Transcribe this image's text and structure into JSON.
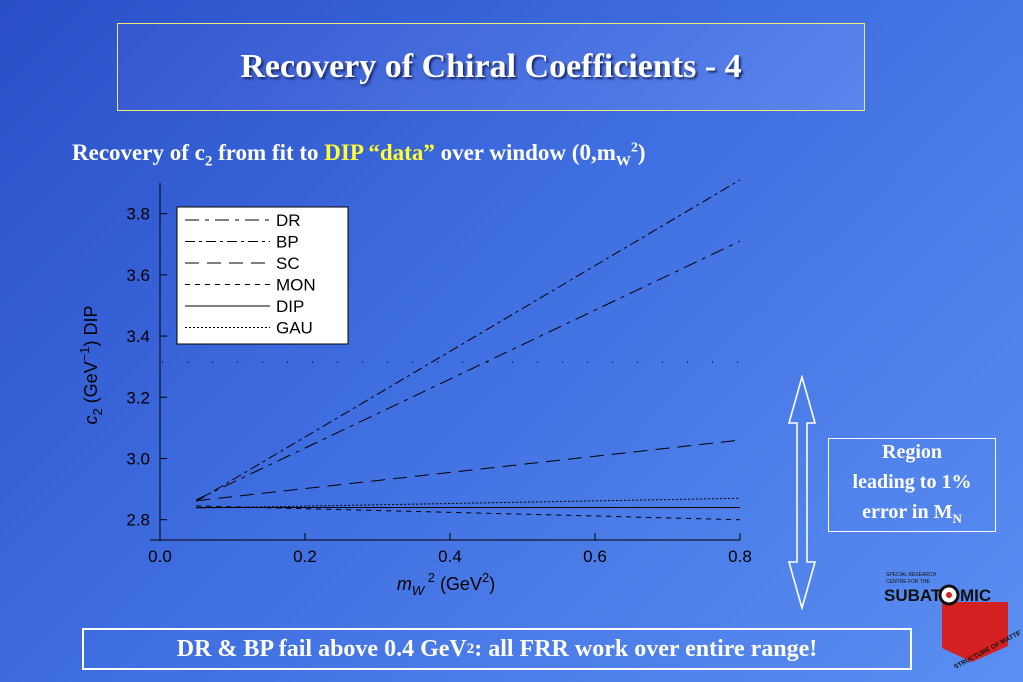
{
  "slide": {
    "title": "Recovery of Chiral Coefficients - 4",
    "subtitle": {
      "pre": "Recovery of c",
      "sub": "2",
      "mid": " from fit to ",
      "highlight": "DIP “data”",
      "post": " over window (0,m",
      "post_sub": "W",
      "post_sup": "2",
      "end": ")"
    },
    "region_note": {
      "line1": "Region",
      "line2": "leading to 1%",
      "line3": "error in M",
      "line3_sub": "N"
    },
    "footer": {
      "pre": "DR & BP fail above 0.4 GeV",
      "sup": "2",
      "post": " : all FRR work over entire range!"
    },
    "logo": {
      "top_text": [
        "SPECIAL RESEARCH",
        "CENTRE FOR THE"
      ],
      "word_left": "SUBAT",
      "word_right": "MIC",
      "arc_text": "STRUCTURE OF MATTER"
    },
    "colors": {
      "highlight": "#ffff33",
      "title_border": "#f2e87a",
      "logo_red": "#d42020"
    }
  },
  "chart_data": {
    "type": "line",
    "xlabel": "m_W^2 (GeV^2)",
    "ylabel": "c_2 (GeV^-1) DIP",
    "xlim": [
      0.0,
      0.8
    ],
    "ylim": [
      2.75,
      3.9
    ],
    "xticks": [
      "0.0",
      "0.2",
      "0.4",
      "0.6",
      "0.8"
    ],
    "yticks": [
      "2.8",
      "3.0",
      "3.2",
      "3.4",
      "3.6",
      "3.8"
    ],
    "legend_position": "top-left",
    "reference_line_y": 3.315,
    "series": [
      {
        "name": "DR",
        "dash": "14,6,4,6",
        "x": [
          0.05,
          0.8
        ],
        "y": [
          2.865,
          3.71
        ]
      },
      {
        "name": "BP",
        "dash": "10,4,3,4",
        "x": [
          0.05,
          0.8
        ],
        "y": [
          2.86,
          3.91
        ]
      },
      {
        "name": "SC",
        "dash": "14,8",
        "x": [
          0.05,
          0.8
        ],
        "y": [
          2.862,
          3.06
        ]
      },
      {
        "name": "MON",
        "dash": "5,5",
        "x": [
          0.05,
          0.8
        ],
        "y": [
          2.845,
          2.8
        ]
      },
      {
        "name": "DIP",
        "dash": "",
        "x": [
          0.05,
          0.8
        ],
        "y": [
          2.84,
          2.84
        ]
      },
      {
        "name": "GAU",
        "dash": "2,2",
        "x": [
          0.05,
          0.8
        ],
        "y": [
          2.838,
          2.87
        ]
      }
    ]
  }
}
